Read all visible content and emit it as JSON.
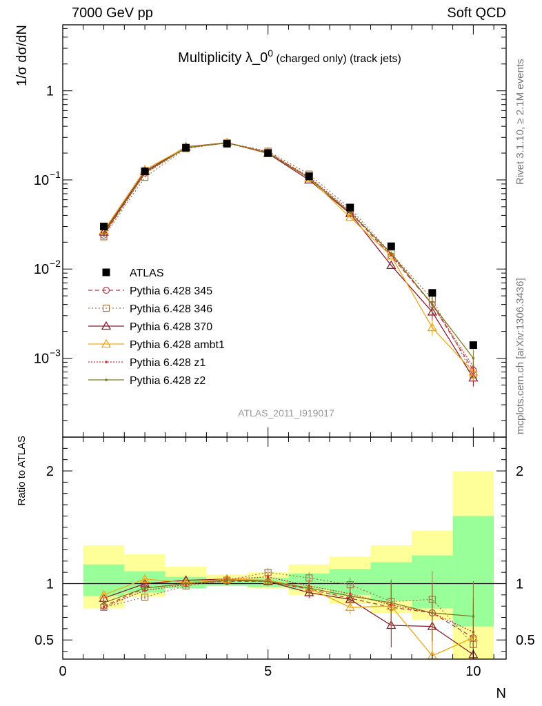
{
  "header": {
    "left": "7000 GeV pp",
    "right": "Soft QCD"
  },
  "side": {
    "rivet": "Rivet 3.1.10, ≥ 2.1M events",
    "mcplots": "mcplots.cern.ch [arXiv:1306.3436]"
  },
  "watermark": "ATLAS_2011_I919017",
  "chart_data": [
    {
      "type": "scatter",
      "title_main": "Multiplicity λ_0",
      "title_sup": "0",
      "title_small": "(charged only) (track jets)",
      "ylabel": "1/σ dσ/dN",
      "yscale": "log",
      "ylim": [
        0.00013,
        5.5
      ],
      "xlim": [
        0,
        10.8
      ],
      "yticks": [
        {
          "value": 1,
          "label": "1"
        },
        {
          "value": 0.1,
          "label": "10",
          "sup": "−1"
        },
        {
          "value": 0.01,
          "label": "10",
          "sup": "−2"
        },
        {
          "value": 0.001,
          "label": "10",
          "sup": "−3"
        }
      ],
      "legend_position": "bottom-left",
      "x": [
        1,
        2,
        3,
        4,
        5,
        6,
        7,
        8,
        9,
        10
      ],
      "data": {
        "name": "ATLAS",
        "color": "#000000",
        "values": [
          0.03,
          0.125,
          0.23,
          0.255,
          0.2,
          0.11,
          0.049,
          0.018,
          0.0054,
          0.0014
        ]
      },
      "series": [
        {
          "name": "Pythia 6.428 345",
          "color": "#b23b4a",
          "dash": "6,4",
          "marker": "circle",
          "values": [
            0.024,
            0.12,
            0.23,
            0.26,
            0.205,
            0.105,
            0.043,
            0.014,
            0.004,
            0.00073
          ]
        },
        {
          "name": "Pythia 6.428 346",
          "color": "#a0784a",
          "dash": "2,3",
          "marker": "square",
          "values": [
            0.023,
            0.107,
            0.225,
            0.26,
            0.21,
            0.116,
            0.048,
            0.015,
            0.0046,
            0.00065
          ]
        },
        {
          "name": "Pythia 6.428 370",
          "color": "#8b1a2e",
          "dash": "",
          "marker": "triangle",
          "values": [
            0.026,
            0.124,
            0.235,
            0.262,
            0.198,
            0.1,
            0.042,
            0.011,
            0.0033,
            0.0006
          ]
        },
        {
          "name": "Pythia 6.428 ambt1",
          "color": "#f0a818",
          "dash": "",
          "marker": "triangle",
          "values": [
            0.027,
            0.13,
            0.232,
            0.262,
            0.2,
            0.105,
            0.038,
            0.014,
            0.0022,
            0.0007
          ]
        },
        {
          "name": "Pythia 6.428 z1",
          "color": "#d43030",
          "dash": "2,2",
          "marker": "dot",
          "values": [
            0.024,
            0.118,
            0.228,
            0.262,
            0.205,
            0.108,
            0.045,
            0.0145,
            0.004,
            0.0008
          ]
        },
        {
          "name": "Pythia 6.428 z2",
          "color": "#7d7a20",
          "dash": "",
          "marker": "dot",
          "values": [
            0.025,
            0.12,
            0.23,
            0.26,
            0.2,
            0.105,
            0.043,
            0.015,
            0.004,
            0.001
          ]
        }
      ]
    },
    {
      "type": "scatter",
      "ylabel": "Ratio to ATLAS",
      "xlabel": "N",
      "ylim": [
        0.33,
        2.3
      ],
      "xlim": [
        0,
        10.8
      ],
      "yticks": [
        {
          "value": 0.5,
          "label": "0.5"
        },
        {
          "value": 1,
          "label": "1"
        },
        {
          "value": 2,
          "label": "2"
        }
      ],
      "xticks": [
        {
          "value": 0,
          "label": "0"
        },
        {
          "value": 5,
          "label": "5"
        },
        {
          "value": 10,
          "label": "10"
        }
      ],
      "x": [
        1,
        2,
        3,
        4,
        5,
        6,
        7,
        8,
        9,
        10
      ],
      "band_inner": [
        [
          0.89,
          1.17
        ],
        [
          0.92,
          1.11
        ],
        [
          0.96,
          1.06
        ],
        [
          0.98,
          1.03
        ],
        [
          0.97,
          1.05
        ],
        [
          0.95,
          1.09
        ],
        [
          0.9,
          1.13
        ],
        [
          0.85,
          1.19
        ],
        [
          0.78,
          1.25
        ],
        [
          0.62,
          1.6
        ]
      ],
      "band_outer": [
        [
          0.78,
          1.34
        ],
        [
          0.88,
          1.26
        ],
        [
          0.96,
          1.15
        ],
        [
          0.98,
          1.08
        ],
        [
          0.96,
          1.1
        ],
        [
          0.9,
          1.17
        ],
        [
          0.82,
          1.24
        ],
        [
          0.74,
          1.34
        ],
        [
          0.68,
          1.47
        ],
        [
          0.33,
          2.0
        ]
      ],
      "series": [
        {
          "name": "Pythia 6.428 345",
          "values": [
            0.8,
            0.96,
            1.0,
            1.02,
            1.02,
            0.95,
            0.87,
            0.79,
            0.74,
            0.52
          ]
        },
        {
          "name": "Pythia 6.428 346",
          "values": [
            0.79,
            0.88,
            0.98,
            1.03,
            1.1,
            1.05,
            0.99,
            0.84,
            0.86,
            0.46
          ]
        },
        {
          "name": "Pythia 6.428 370",
          "values": [
            0.87,
            1.0,
            1.03,
            1.04,
            1.02,
            0.92,
            0.86,
            0.63,
            0.62,
            0.37
          ]
        },
        {
          "name": "Pythia 6.428 ambt1",
          "values": [
            0.9,
            1.04,
            1.01,
            1.04,
            1.03,
            0.96,
            0.79,
            0.8,
            0.36,
            0.52
          ]
        },
        {
          "name": "Pythia 6.428 z1",
          "values": [
            0.79,
            0.94,
            0.99,
            1.04,
            1.06,
            0.98,
            0.91,
            0.81,
            0.74,
            0.57
          ]
        },
        {
          "name": "Pythia 6.428 z2",
          "values": [
            0.83,
            0.96,
            1.0,
            1.03,
            1.02,
            0.96,
            0.89,
            0.83,
            0.74,
            0.71
          ]
        }
      ]
    }
  ]
}
